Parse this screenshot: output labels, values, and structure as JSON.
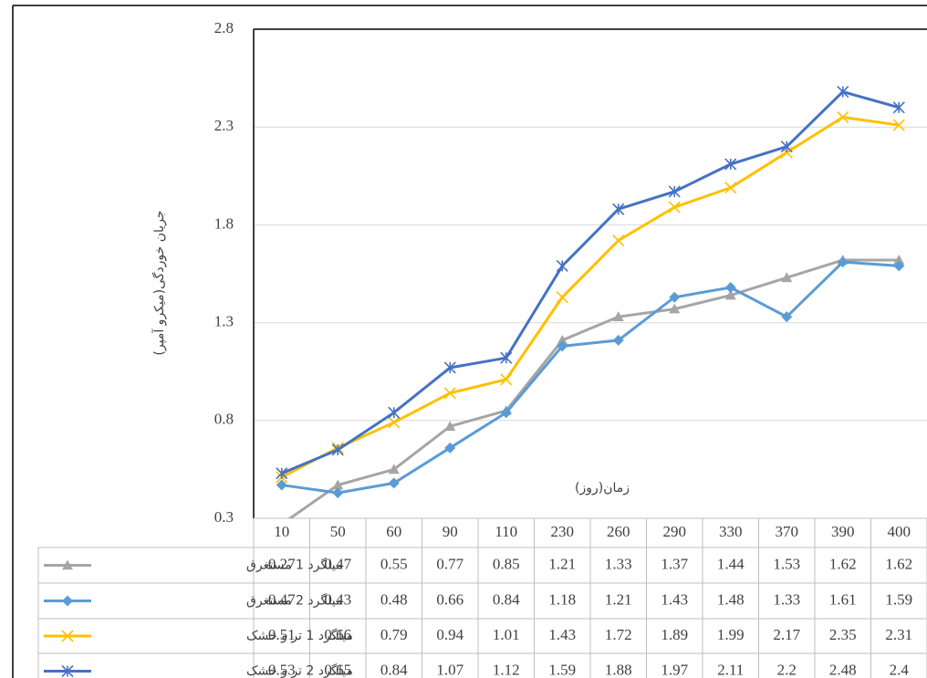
{
  "chart_data": {
    "type": "line",
    "y_label": "جریان خوردگی(میکرو آمپر)",
    "x_label": "زمان(روز)",
    "categories": [
      10,
      50,
      60,
      90,
      110,
      230,
      260,
      290,
      330,
      370,
      390,
      400
    ],
    "ylim": [
      0.3,
      2.8
    ],
    "yticks": [
      0.3,
      0.8,
      1.3,
      1.8,
      2.3,
      2.8
    ],
    "grid": true,
    "series": [
      {
        "name": "میلگرد 1 مستغرق",
        "color": "#a5a5a5",
        "marker": "triangle",
        "values": [
          0.27,
          0.47,
          0.55,
          0.77,
          0.85,
          1.21,
          1.33,
          1.37,
          1.44,
          1.53,
          1.62,
          1.62
        ]
      },
      {
        "name": "میلگرد 2 مستغرق",
        "color": "#5b9bd5",
        "marker": "diamond",
        "values": [
          0.47,
          0.43,
          0.48,
          0.66,
          0.84,
          1.18,
          1.21,
          1.43,
          1.48,
          1.33,
          1.61,
          1.59
        ]
      },
      {
        "name": "میلگرد 1 تر و خشک",
        "color": "#ffc000",
        "marker": "x",
        "values": [
          0.51,
          0.66,
          0.79,
          0.94,
          1.01,
          1.43,
          1.72,
          1.89,
          1.99,
          2.17,
          2.35,
          2.31
        ]
      },
      {
        "name": "میلگرد 2 تر و خشک",
        "color": "#4472c4",
        "marker": "star",
        "values": [
          0.53,
          0.65,
          0.84,
          1.07,
          1.12,
          1.59,
          1.88,
          1.97,
          2.11,
          2.2,
          2.48,
          2.4
        ]
      }
    ]
  }
}
